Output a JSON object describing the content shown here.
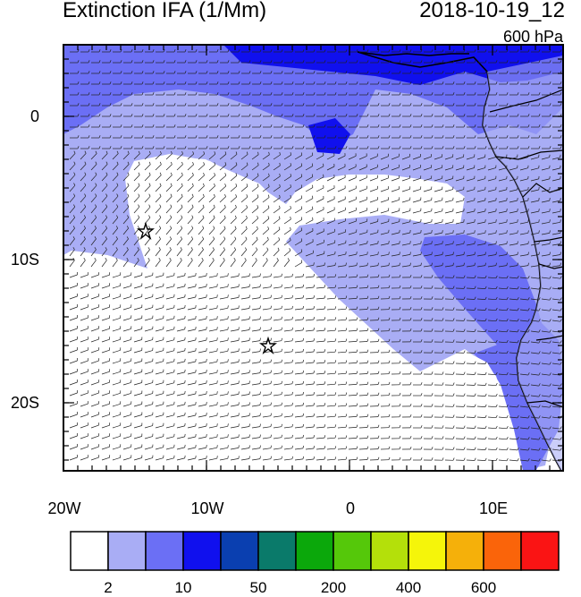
{
  "title": "Extinction IFA (1/Mm)",
  "datetime": "2018-10-19_12",
  "level": "600 hPa",
  "lat_labels": [
    "0",
    "10S",
    "20S"
  ],
  "lon_labels": [
    "20W",
    "10W",
    "0",
    "10E"
  ],
  "colorbar": {
    "colors": [
      "#ffffff",
      "#a9adf5",
      "#6b6ff5",
      "#1010ee",
      "#0a3fb0",
      "#0a7a6a",
      "#0ba80b",
      "#55c80a",
      "#b4e00a",
      "#f5f50a",
      "#f5b00a",
      "#fa640a",
      "#fa1414"
    ],
    "labels": [
      "2",
      "10",
      "50",
      "200",
      "400",
      "600"
    ]
  },
  "markers": [
    "star",
    "star"
  ]
}
